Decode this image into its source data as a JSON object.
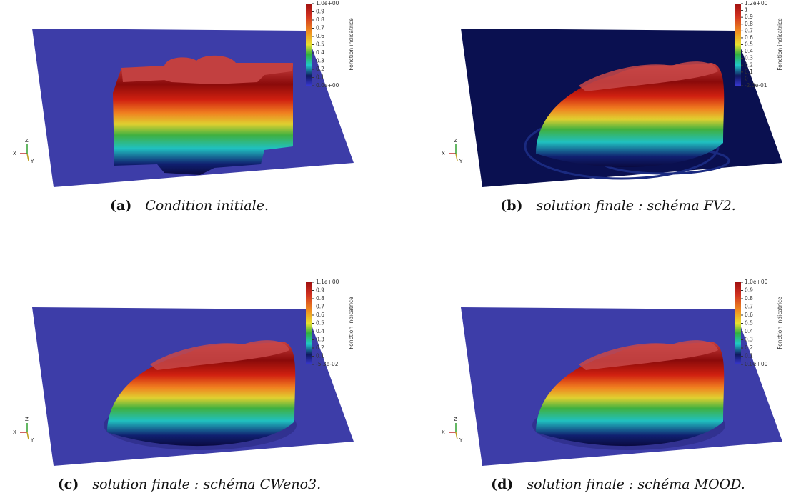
{
  "panels": [
    {
      "label": "(a)",
      "caption": "Condition initiale.",
      "colorbar": {
        "title": "Fonction indicatrice",
        "ticks": [
          "1.0e+00",
          "0.9",
          "0.8",
          "0.7",
          "0.6",
          "0.5",
          "0.4",
          "0.3",
          "0.2",
          "0.1",
          "0.0e+00"
        ]
      },
      "axes": {
        "x": "X",
        "y": "Y",
        "z": "Z"
      }
    },
    {
      "label": "(b)",
      "caption": "solution finale : schéma FV2.",
      "colorbar": {
        "title": "Fonction indicatrice",
        "ticks": [
          "1.2e+00",
          "1",
          "0.9",
          "0.8",
          "0.7",
          "0.6",
          "0.5",
          "0.4",
          "0.3",
          "0.2",
          "0.1",
          "0",
          "-2.0e-01"
        ]
      },
      "axes": {
        "x": "X",
        "y": "Y",
        "z": "Z"
      }
    },
    {
      "label": "(c)",
      "caption": "solution finale : schéma CWeno3.",
      "colorbar": {
        "title": "Fonction indicatrice",
        "ticks": [
          "1.1e+00",
          "0.9",
          "0.8",
          "0.7",
          "0.6",
          "0.5",
          "0.4",
          "0.3",
          "0.2",
          "0.1",
          "-5.3e-02"
        ]
      },
      "axes": {
        "x": "X",
        "y": "Y",
        "z": "Z"
      }
    },
    {
      "label": "(d)",
      "caption": "solution finale : schéma MOOD.",
      "colorbar": {
        "title": "Fonction indicatrice",
        "ticks": [
          "1.0e+00",
          "0.9",
          "0.8",
          "0.7",
          "0.6",
          "0.5",
          "0.4",
          "0.3",
          "0.2",
          "0.1",
          "0.0e+00"
        ]
      },
      "axes": {
        "x": "X",
        "y": "Y",
        "z": "Z"
      }
    }
  ]
}
